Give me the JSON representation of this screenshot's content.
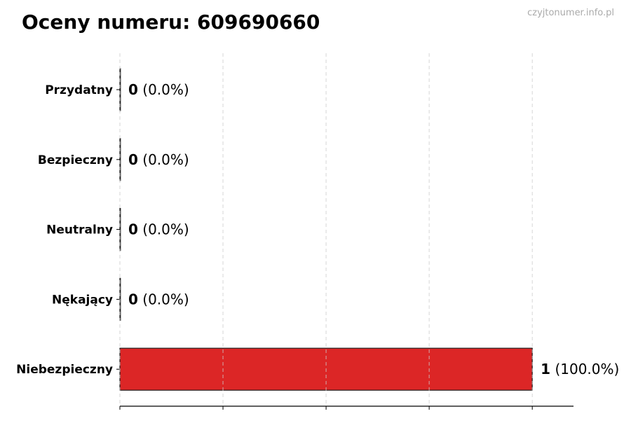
{
  "chart_data": {
    "type": "bar",
    "orientation": "horizontal",
    "title": "Oceny numeru: 609690660",
    "watermark": "czyjtonumer.info.pl",
    "categories": [
      "Przydatny",
      "Bezpieczny",
      "Neutralny",
      "Nękający",
      "Niebezpieczny"
    ],
    "values": [
      0,
      0,
      0,
      0,
      1
    ],
    "value_labels": [
      "0",
      "0",
      "0",
      "0",
      "1"
    ],
    "percent_labels": [
      "(0.0%)",
      "(0.0%)",
      "(0.0%)",
      "(0.0%)",
      "(100.0%)"
    ],
    "bar_color": "#dc2626",
    "xlim": [
      0,
      1.1
    ],
    "xticks": [
      0,
      0.25,
      0.5,
      0.75,
      1
    ],
    "grid": "x-dashed",
    "xlabel": "",
    "ylabel": ""
  }
}
